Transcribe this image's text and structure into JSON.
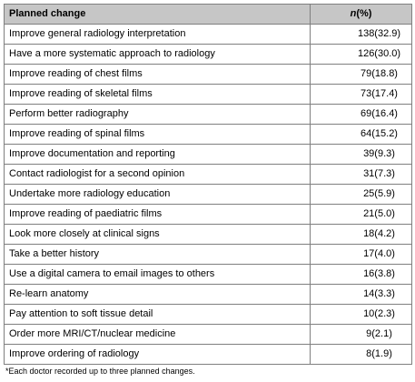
{
  "table": {
    "headers": {
      "change": "Planned change",
      "n_italic": "n",
      "n_suffix": "(%)"
    },
    "rows": [
      {
        "change": "Improve general radiology interpretation",
        "n": "138(32.9)"
      },
      {
        "change": "Have a more systematic approach to radiology",
        "n": "126(30.0)"
      },
      {
        "change": "Improve reading of chest films",
        "n": "79(18.8)"
      },
      {
        "change": "Improve reading of skeletal films",
        "n": "73(17.4)"
      },
      {
        "change": "Perform better radiography",
        "n": "69(16.4)"
      },
      {
        "change": "Improve reading of spinal films",
        "n": "64(15.2)"
      },
      {
        "change": "Improve documentation and reporting",
        "n": "39(9.3)"
      },
      {
        "change": "Contact radiologist for a second opinion",
        "n": "31(7.3)"
      },
      {
        "change": "Undertake more radiology education",
        "n": "25(5.9)"
      },
      {
        "change": "Improve reading of paediatric films",
        "n": "21(5.0)"
      },
      {
        "change": "Look more closely at clinical signs",
        "n": "18(4.2)"
      },
      {
        "change": "Take a better history",
        "n": "17(4.0)"
      },
      {
        "change": "Use a digital camera to email images to others",
        "n": "16(3.8)"
      },
      {
        "change": "Re-learn anatomy",
        "n": "14(3.3)"
      },
      {
        "change": "Pay attention to soft tissue detail",
        "n": "10(2.3)"
      },
      {
        "change": "Order more MRI/CT/nuclear medicine",
        "n": "9(2.1)"
      },
      {
        "change": "Improve ordering of radiology",
        "n": "8(1.9)"
      }
    ]
  },
  "footnote": "*Each doctor recorded up to three planned changes.",
  "colors": {
    "header_bg": "#c6c6c6",
    "border": "#7f7f7f"
  }
}
